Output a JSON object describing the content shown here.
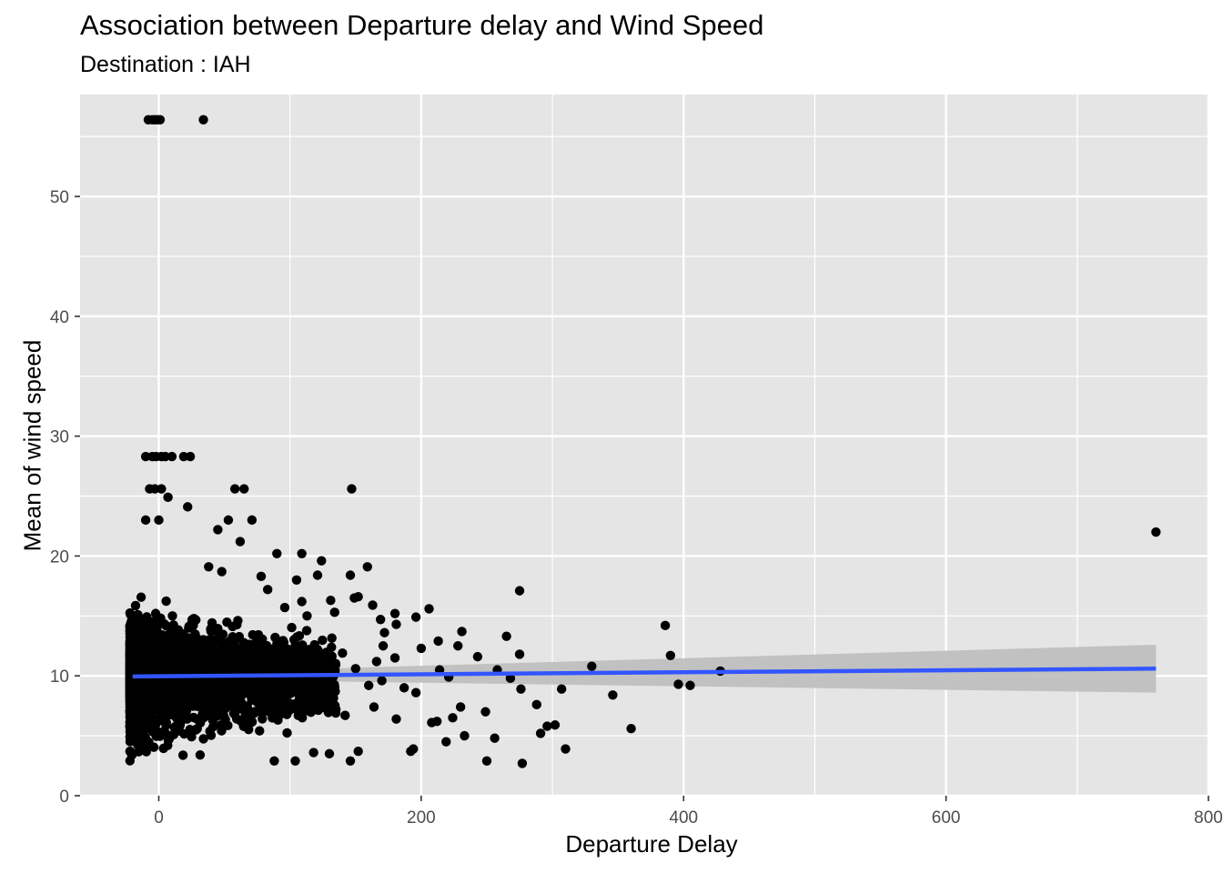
{
  "chart_data": {
    "type": "scatter",
    "title": "Association between Departure delay and Wind Speed",
    "subtitle": "Destination : IAH",
    "xlabel": "Departure Delay",
    "ylabel": "Mean of wind speed",
    "xlim": [
      -60,
      800
    ],
    "ylim": [
      0,
      58.5
    ],
    "x_ticks": [
      0,
      200,
      400,
      600,
      800
    ],
    "x_tick_labels": [
      "0",
      "200",
      "400",
      "600",
      "800"
    ],
    "y_ticks": [
      0,
      10,
      20,
      30,
      40,
      50
    ],
    "y_tick_labels": [
      "0",
      "10",
      "20",
      "30",
      "40",
      "50"
    ],
    "grid": true,
    "legend": "none",
    "colors": {
      "panel": "#e5e5e5",
      "grid": "#ffffff",
      "points": "#000000",
      "trend": "#3355ff",
      "band": "#bdbdbd"
    },
    "trend_line": {
      "x": [
        -20,
        760
      ],
      "y": [
        9.95,
        10.6
      ],
      "se_band": {
        "x": [
          -20,
          760
        ],
        "lower": [
          9.75,
          8.6
        ],
        "upper": [
          10.15,
          12.6
        ]
      }
    },
    "points": [
      {
        "x": -8,
        "y": 56.4
      },
      {
        "x": -5,
        "y": 56.4
      },
      {
        "x": -3,
        "y": 56.4
      },
      {
        "x": -1,
        "y": 56.4
      },
      {
        "x": 1,
        "y": 56.4
      },
      {
        "x": 34,
        "y": 56.4
      },
      {
        "x": -10,
        "y": 28.3
      },
      {
        "x": -5,
        "y": 28.3
      },
      {
        "x": -2,
        "y": 28.3
      },
      {
        "x": 2,
        "y": 28.3
      },
      {
        "x": 5,
        "y": 28.3
      },
      {
        "x": 10,
        "y": 28.3
      },
      {
        "x": 19,
        "y": 28.3
      },
      {
        "x": 24,
        "y": 28.3
      },
      {
        "x": -7,
        "y": 25.6
      },
      {
        "x": -3,
        "y": 25.6
      },
      {
        "x": 2,
        "y": 25.6
      },
      {
        "x": 58,
        "y": 25.6
      },
      {
        "x": 65,
        "y": 25.6
      },
      {
        "x": 147,
        "y": 25.6
      },
      {
        "x": 7,
        "y": 24.9
      },
      {
        "x": -10,
        "y": 23.0
      },
      {
        "x": 0,
        "y": 23.0
      },
      {
        "x": 53,
        "y": 23.0
      },
      {
        "x": 71,
        "y": 23.0
      },
      {
        "x": 45,
        "y": 22.2
      },
      {
        "x": 22,
        "y": 24.1
      },
      {
        "x": 62,
        "y": 21.2
      },
      {
        "x": 90,
        "y": 20.2
      },
      {
        "x": 109,
        "y": 20.2
      },
      {
        "x": 124,
        "y": 19.6
      },
      {
        "x": 159,
        "y": 19.1
      },
      {
        "x": 38,
        "y": 19.1
      },
      {
        "x": 48,
        "y": 18.7
      },
      {
        "x": 105,
        "y": 18.0
      },
      {
        "x": 121,
        "y": 18.4
      },
      {
        "x": 146,
        "y": 18.4
      },
      {
        "x": 78,
        "y": 18.3
      },
      {
        "x": 275,
        "y": 17.1
      },
      {
        "x": 83,
        "y": 17.2
      },
      {
        "x": 131,
        "y": 16.3
      },
      {
        "x": 152,
        "y": 16.6
      },
      {
        "x": 149,
        "y": 16.5
      },
      {
        "x": 109,
        "y": 16.2
      },
      {
        "x": 96,
        "y": 15.7
      },
      {
        "x": 163,
        "y": 15.9
      },
      {
        "x": 206,
        "y": 15.6
      },
      {
        "x": 196,
        "y": 14.9
      },
      {
        "x": 180,
        "y": 15.2
      },
      {
        "x": 169,
        "y": 14.7
      },
      {
        "x": 113,
        "y": 15.0
      },
      {
        "x": 134,
        "y": 15.3
      },
      {
        "x": 181,
        "y": 14.3
      },
      {
        "x": 172,
        "y": 13.6
      },
      {
        "x": 231,
        "y": 13.7
      },
      {
        "x": 265,
        "y": 13.3
      },
      {
        "x": 386,
        "y": 14.2
      },
      {
        "x": 213,
        "y": 12.9
      },
      {
        "x": 228,
        "y": 12.5
      },
      {
        "x": 200,
        "y": 12.3
      },
      {
        "x": 243,
        "y": 11.6
      },
      {
        "x": 275,
        "y": 11.8
      },
      {
        "x": 390,
        "y": 11.7
      },
      {
        "x": 330,
        "y": 10.8
      },
      {
        "x": 428,
        "y": 10.4
      },
      {
        "x": 258,
        "y": 10.5
      },
      {
        "x": 268,
        "y": 9.8
      },
      {
        "x": 276,
        "y": 8.9
      },
      {
        "x": 307,
        "y": 8.9
      },
      {
        "x": 396,
        "y": 9.3
      },
      {
        "x": 405,
        "y": 9.2
      },
      {
        "x": 346,
        "y": 8.4
      },
      {
        "x": 288,
        "y": 7.6
      },
      {
        "x": 249,
        "y": 7.0
      },
      {
        "x": 230,
        "y": 7.4
      },
      {
        "x": 224,
        "y": 6.5
      },
      {
        "x": 302,
        "y": 5.9
      },
      {
        "x": 296,
        "y": 5.8
      },
      {
        "x": 291,
        "y": 5.2
      },
      {
        "x": 360,
        "y": 5.6
      },
      {
        "x": 233,
        "y": 5.0
      },
      {
        "x": 256,
        "y": 4.8
      },
      {
        "x": 219,
        "y": 4.5
      },
      {
        "x": 310,
        "y": 3.9
      },
      {
        "x": 194,
        "y": 3.9
      },
      {
        "x": 208,
        "y": 6.1
      },
      {
        "x": 212,
        "y": 6.2
      },
      {
        "x": 181,
        "y": 6.4
      },
      {
        "x": 250,
        "y": 2.9
      },
      {
        "x": 277,
        "y": 2.7
      },
      {
        "x": 146,
        "y": 2.9
      },
      {
        "x": 130,
        "y": 3.5
      },
      {
        "x": 152,
        "y": 3.7
      },
      {
        "x": 118,
        "y": 3.6
      },
      {
        "x": 88,
        "y": 2.9
      },
      {
        "x": 104,
        "y": 2.9
      },
      {
        "x": 192,
        "y": 3.7
      },
      {
        "x": 760,
        "y": 22.0
      },
      {
        "x": 170,
        "y": 9.6
      },
      {
        "x": 187,
        "y": 9.0
      },
      {
        "x": 196,
        "y": 8.6
      },
      {
        "x": 180,
        "y": 11.5
      },
      {
        "x": 166,
        "y": 11.2
      },
      {
        "x": 214,
        "y": 10.5
      },
      {
        "x": 221,
        "y": 9.9
      },
      {
        "x": 160,
        "y": 9.2
      },
      {
        "x": 150,
        "y": 10.6
      },
      {
        "x": 140,
        "y": 11.9
      },
      {
        "x": 135,
        "y": 7.2
      },
      {
        "x": 142,
        "y": 6.7
      },
      {
        "x": 164,
        "y": 7.4
      },
      {
        "x": 171,
        "y": 12.5
      }
    ],
    "dense_cluster": {
      "x_range": [
        -22,
        135
      ],
      "y_range": [
        2.6,
        22.5
      ],
      "center_y": 9.9,
      "note_visible": false
    }
  }
}
